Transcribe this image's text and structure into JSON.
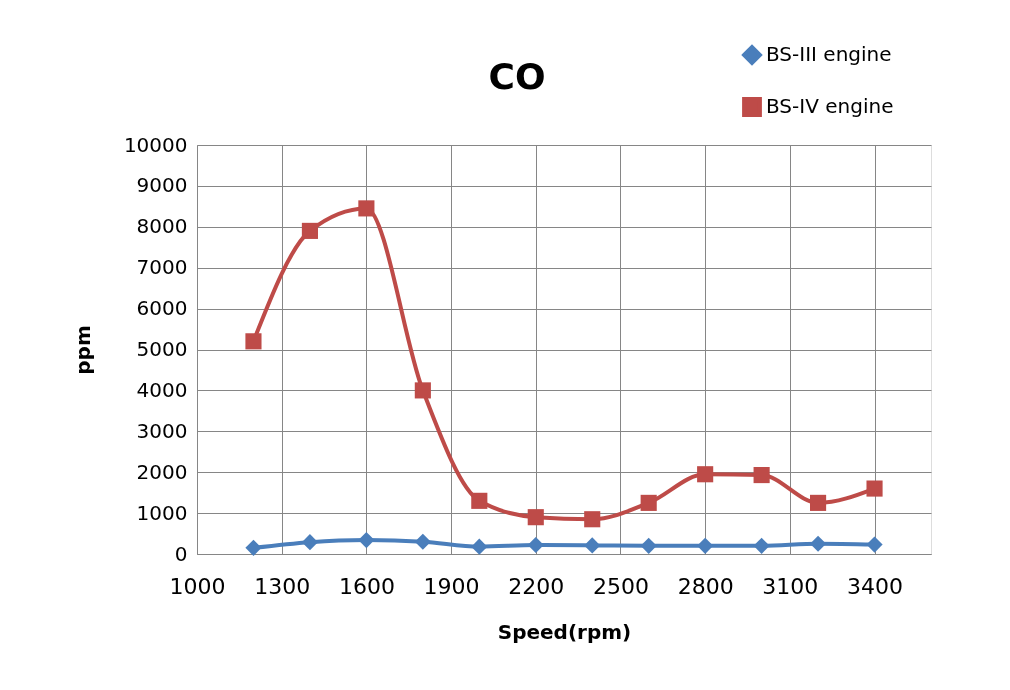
{
  "chart_data": {
    "type": "line",
    "title": "CO",
    "xlabel": "Speed(rpm)",
    "ylabel": "ppm",
    "x": [
      1200,
      1400,
      1600,
      1800,
      2000,
      2200,
      2400,
      2600,
      2800,
      3000,
      3200,
      3400
    ],
    "xlim": [
      1000,
      3600
    ],
    "xticks": [
      1000,
      1300,
      1600,
      1900,
      2200,
      2500,
      2800,
      3100,
      3400
    ],
    "ylim": [
      0,
      10000
    ],
    "yticks": [
      0,
      1000,
      2000,
      3000,
      4000,
      5000,
      6000,
      7000,
      8000,
      9000,
      10000
    ],
    "grid": true,
    "legend": "top right",
    "line_style": "solid",
    "series": [
      {
        "name": "BS-III engine",
        "color": "#4a7ebb",
        "marker": "diamond",
        "values": [
          150,
          290,
          340,
          300,
          180,
          220,
          210,
          200,
          200,
          200,
          250,
          230
        ]
      },
      {
        "name": "BS-IV engine",
        "color": "#be4b48",
        "marker": "square",
        "values": [
          5200,
          7900,
          8450,
          4000,
          1300,
          900,
          850,
          1250,
          1950,
          1930,
          1250,
          1600
        ]
      }
    ]
  }
}
